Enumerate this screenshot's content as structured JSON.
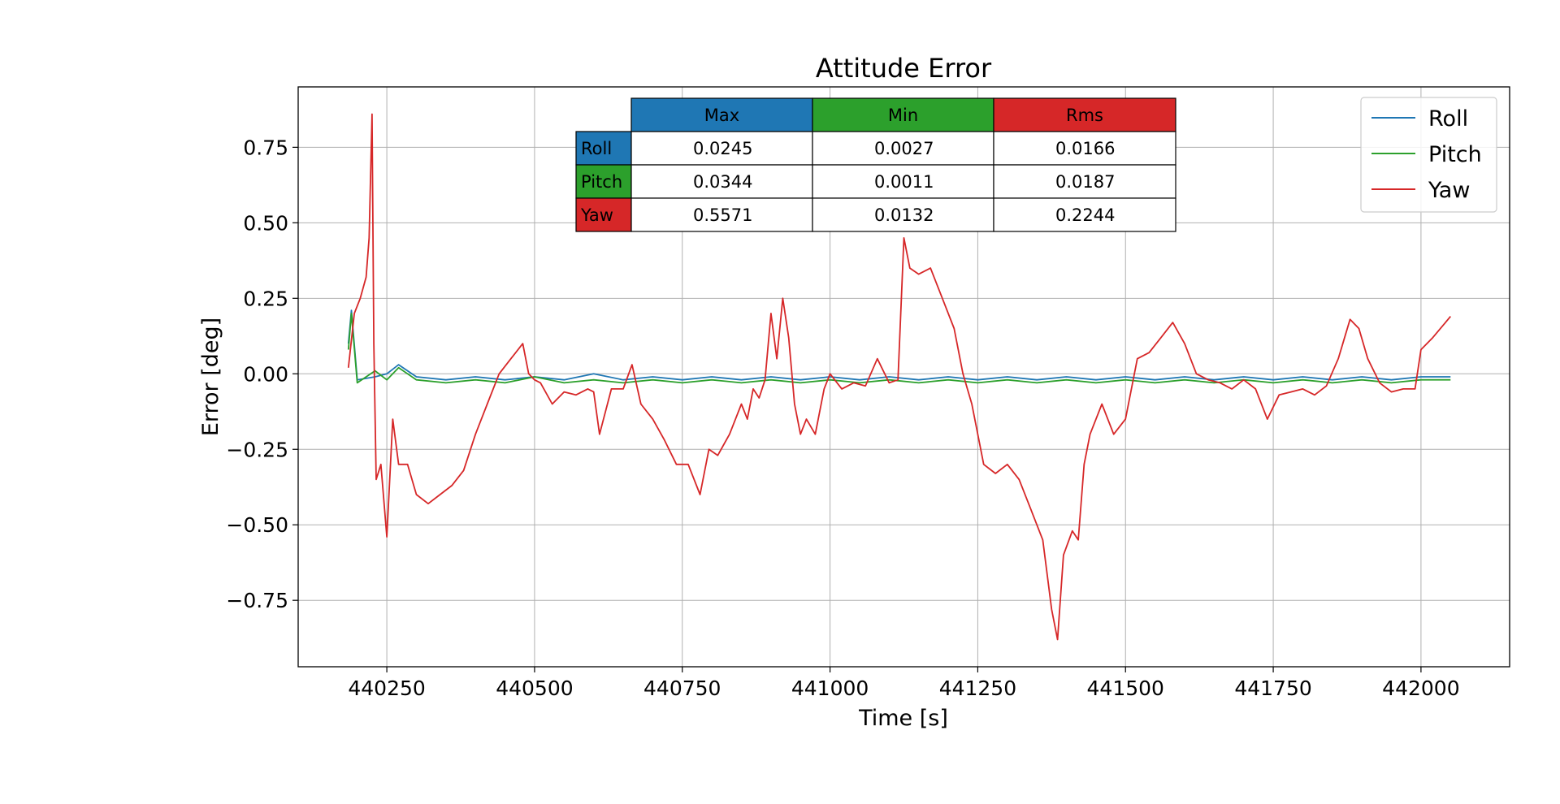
{
  "chart_data": {
    "type": "line",
    "title": "Attitude Error",
    "xlabel": "Time [s]",
    "ylabel": "Error [deg]",
    "xlim": [
      440100,
      442150
    ],
    "ylim": [
      -0.97,
      0.95
    ],
    "x_ticks": [
      440250,
      440500,
      440750,
      441000,
      441250,
      441500,
      441750,
      442000
    ],
    "x_tick_labels": [
      "440250",
      "440500",
      "440750",
      "441000",
      "441250",
      "441500",
      "441750",
      "442000"
    ],
    "y_ticks": [
      0.75,
      0.5,
      0.25,
      0.0,
      -0.25,
      -0.5,
      -0.75
    ],
    "y_tick_labels": [
      "0.75",
      "0.50",
      "0.25",
      "0.00",
      "−0.25",
      "−0.50",
      "−0.75"
    ],
    "grid": true,
    "legend_position": "top-right",
    "series": [
      {
        "name": "Roll",
        "color": "#1f77b4",
        "x": [
          440185,
          440190,
          440200,
          440230,
          440250,
          440270,
          440300,
          440350,
          440400,
          440450,
          440500,
          440550,
          440600,
          440650,
          440700,
          440750,
          440800,
          440850,
          440900,
          440950,
          441000,
          441050,
          441100,
          441150,
          441200,
          441250,
          441300,
          441350,
          441400,
          441450,
          441500,
          441550,
          441600,
          441650,
          441700,
          441750,
          441800,
          441850,
          441900,
          441950,
          442000,
          442050
        ],
        "y": [
          0.1,
          0.21,
          -0.02,
          -0.01,
          0.0,
          0.03,
          -0.01,
          -0.02,
          -0.01,
          -0.02,
          -0.01,
          -0.02,
          0.0,
          -0.02,
          -0.01,
          -0.02,
          -0.01,
          -0.02,
          -0.01,
          -0.02,
          -0.01,
          -0.02,
          -0.01,
          -0.02,
          -0.01,
          -0.02,
          -0.01,
          -0.02,
          -0.01,
          -0.02,
          -0.01,
          -0.02,
          -0.01,
          -0.02,
          -0.01,
          -0.02,
          -0.01,
          -0.02,
          -0.01,
          -0.02,
          -0.01,
          -0.01
        ]
      },
      {
        "name": "Pitch",
        "color": "#2ca02c",
        "x": [
          440185,
          440190,
          440200,
          440230,
          440250,
          440270,
          440300,
          440350,
          440400,
          440450,
          440500,
          440550,
          440600,
          440650,
          440700,
          440750,
          440800,
          440850,
          440900,
          440950,
          441000,
          441050,
          441100,
          441150,
          441200,
          441250,
          441300,
          441350,
          441400,
          441450,
          441500,
          441550,
          441600,
          441650,
          441700,
          441750,
          441800,
          441850,
          441900,
          441950,
          442000,
          442050
        ],
        "y": [
          0.08,
          0.2,
          -0.03,
          0.01,
          -0.02,
          0.02,
          -0.02,
          -0.03,
          -0.02,
          -0.03,
          -0.01,
          -0.03,
          -0.02,
          -0.03,
          -0.02,
          -0.03,
          -0.02,
          -0.03,
          -0.02,
          -0.03,
          -0.02,
          -0.03,
          -0.02,
          -0.03,
          -0.02,
          -0.03,
          -0.02,
          -0.03,
          -0.02,
          -0.03,
          -0.02,
          -0.03,
          -0.02,
          -0.03,
          -0.02,
          -0.03,
          -0.02,
          -0.03,
          -0.02,
          -0.03,
          -0.02,
          -0.02
        ]
      },
      {
        "name": "Yaw",
        "color": "#d62728",
        "x": [
          440185,
          440195,
          440205,
          440215,
          440220,
          440225,
          440228,
          440232,
          440240,
          440250,
          440260,
          440270,
          440285,
          440300,
          440320,
          440340,
          440360,
          440380,
          440400,
          440420,
          440440,
          440460,
          440480,
          440490,
          440500,
          440510,
          440530,
          440550,
          440570,
          440590,
          440600,
          440610,
          440630,
          440650,
          440665,
          440680,
          440700,
          440720,
          440740,
          440760,
          440780,
          440795,
          440810,
          440830,
          440850,
          440860,
          440870,
          440880,
          440890,
          440900,
          440910,
          440920,
          440930,
          440940,
          440950,
          440960,
          440975,
          440990,
          441000,
          441020,
          441040,
          441060,
          441080,
          441100,
          441115,
          441125,
          441135,
          441150,
          441170,
          441190,
          441210,
          441225,
          441240,
          441260,
          441280,
          441300,
          441320,
          441340,
          441360,
          441375,
          441385,
          441395,
          441410,
          441420,
          441430,
          441440,
          441460,
          441480,
          441500,
          441520,
          441540,
          441560,
          441580,
          441600,
          441620,
          441640,
          441660,
          441680,
          441700,
          441720,
          441740,
          441760,
          441780,
          441800,
          441820,
          441840,
          441860,
          441880,
          441895,
          441910,
          441930,
          441950,
          441970,
          441990,
          442000,
          442020,
          442050
        ],
        "y": [
          0.02,
          0.2,
          0.25,
          0.32,
          0.45,
          0.86,
          0.1,
          -0.35,
          -0.3,
          -0.54,
          -0.15,
          -0.3,
          -0.3,
          -0.4,
          -0.43,
          -0.4,
          -0.37,
          -0.32,
          -0.2,
          -0.1,
          0.0,
          0.05,
          0.1,
          0.0,
          -0.02,
          -0.03,
          -0.1,
          -0.06,
          -0.07,
          -0.05,
          -0.06,
          -0.2,
          -0.05,
          -0.05,
          0.03,
          -0.1,
          -0.15,
          -0.22,
          -0.3,
          -0.3,
          -0.4,
          -0.25,
          -0.27,
          -0.2,
          -0.1,
          -0.15,
          -0.05,
          -0.08,
          -0.02,
          0.2,
          0.05,
          0.25,
          0.12,
          -0.1,
          -0.2,
          -0.15,
          -0.2,
          -0.05,
          0.0,
          -0.05,
          -0.03,
          -0.04,
          0.05,
          -0.03,
          -0.02,
          0.45,
          0.35,
          0.33,
          0.35,
          0.25,
          0.15,
          0.0,
          -0.1,
          -0.3,
          -0.33,
          -0.3,
          -0.35,
          -0.45,
          -0.55,
          -0.78,
          -0.88,
          -0.6,
          -0.52,
          -0.55,
          -0.3,
          -0.2,
          -0.1,
          -0.2,
          -0.15,
          0.05,
          0.07,
          0.12,
          0.17,
          0.1,
          0.0,
          -0.02,
          -0.03,
          -0.05,
          -0.02,
          -0.05,
          -0.15,
          -0.07,
          -0.06,
          -0.05,
          -0.07,
          -0.04,
          0.05,
          0.18,
          0.15,
          0.05,
          -0.03,
          -0.06,
          -0.05,
          -0.05,
          0.08,
          0.12,
          0.19
        ]
      }
    ]
  },
  "stats_table": {
    "column_headers": [
      "Max",
      "Min",
      "Rms"
    ],
    "column_colors": [
      "#1f77b4",
      "#2ca02c",
      "#d62728"
    ],
    "rows": [
      {
        "label": "Roll",
        "color": "#1f77b4",
        "values": [
          "0.0245",
          "0.0027",
          "0.0166"
        ]
      },
      {
        "label": "Pitch",
        "color": "#2ca02c",
        "values": [
          "0.0344",
          "0.0011",
          "0.0187"
        ]
      },
      {
        "label": "Yaw",
        "color": "#d62728",
        "values": [
          "0.5571",
          "0.0132",
          "0.2244"
        ]
      }
    ]
  }
}
